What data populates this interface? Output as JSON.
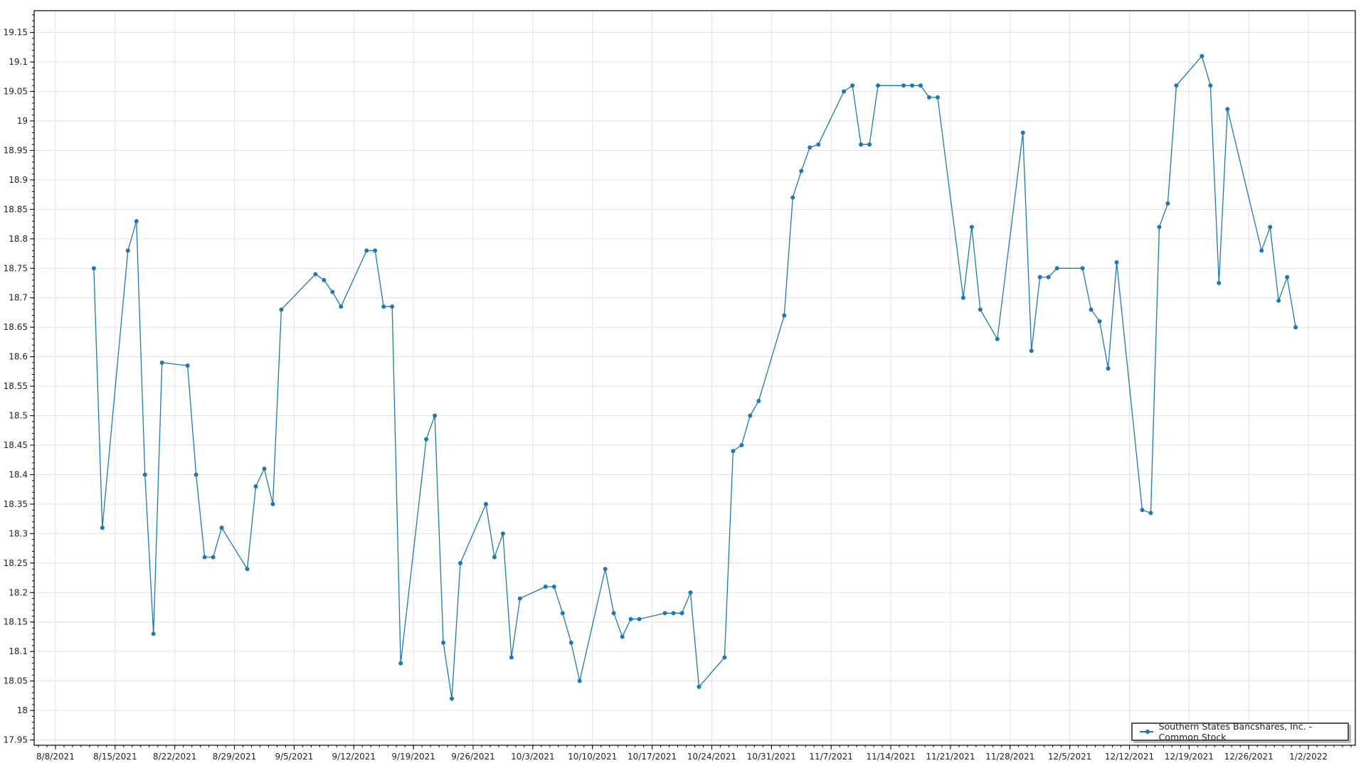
{
  "chart_data": {
    "type": "line",
    "title": "",
    "xlabel": "",
    "ylabel": "",
    "grid": true,
    "legend_position": "bottom-right",
    "ylim": [
      17.941,
      19.187
    ],
    "xlim": [
      "2021-08-05T12:00",
      "2022-01-07T12:00"
    ],
    "y_ticks": [
      "17.95",
      "18",
      "18.05",
      "18.1",
      "18.15",
      "18.2",
      "18.25",
      "18.3",
      "18.35",
      "18.4",
      "18.45",
      "18.5",
      "18.55",
      "18.6",
      "18.65",
      "18.7",
      "18.75",
      "18.8",
      "18.85",
      "18.9",
      "18.95",
      "19",
      "19.05",
      "19.1",
      "19.15"
    ],
    "x_ticks": [
      "8/8/2021",
      "8/15/2021",
      "8/22/2021",
      "8/29/2021",
      "9/5/2021",
      "9/12/2021",
      "9/19/2021",
      "9/26/2021",
      "10/3/2021",
      "10/10/2021",
      "10/17/2021",
      "10/24/2021",
      "10/31/2021",
      "11/7/2021",
      "11/14/2021",
      "11/21/2021",
      "11/28/2021",
      "12/5/2021",
      "12/12/2021",
      "12/19/2021",
      "12/26/2021",
      "1/2/2022"
    ],
    "series": [
      {
        "name": "Southern States Bancshares, Inc. - Common Stock",
        "color": "#1f77b4",
        "x": [
          "2021-08-12",
          "2021-08-13",
          "2021-08-16",
          "2021-08-17",
          "2021-08-18",
          "2021-08-19",
          "2021-08-20",
          "2021-08-23",
          "2021-08-24",
          "2021-08-25",
          "2021-08-26",
          "2021-08-27",
          "2021-08-30",
          "2021-08-31",
          "2021-09-01",
          "2021-09-02",
          "2021-09-03",
          "2021-09-07",
          "2021-09-08",
          "2021-09-09",
          "2021-09-10",
          "2021-09-13",
          "2021-09-14",
          "2021-09-15",
          "2021-09-16",
          "2021-09-17",
          "2021-09-20",
          "2021-09-21",
          "2021-09-22",
          "2021-09-23",
          "2021-09-24",
          "2021-09-27",
          "2021-09-28",
          "2021-09-29",
          "2021-09-30",
          "2021-10-01",
          "2021-10-04",
          "2021-10-05",
          "2021-10-06",
          "2021-10-07",
          "2021-10-08",
          "2021-10-11",
          "2021-10-12",
          "2021-10-13",
          "2021-10-14",
          "2021-10-15",
          "2021-10-18",
          "2021-10-19",
          "2021-10-20",
          "2021-10-21",
          "2021-10-22",
          "2021-10-25",
          "2021-10-26",
          "2021-10-27",
          "2021-10-28",
          "2021-10-29",
          "2021-11-01",
          "2021-11-02",
          "2021-11-03",
          "2021-11-04",
          "2021-11-05",
          "2021-11-08",
          "2021-11-09",
          "2021-11-10",
          "2021-11-11",
          "2021-11-12",
          "2021-11-15",
          "2021-11-16",
          "2021-11-17",
          "2021-11-18",
          "2021-11-19",
          "2021-11-22",
          "2021-11-23",
          "2021-11-24",
          "2021-11-26",
          "2021-11-29",
          "2021-11-30",
          "2021-12-01",
          "2021-12-02",
          "2021-12-03",
          "2021-12-06",
          "2021-12-07",
          "2021-12-08",
          "2021-12-09",
          "2021-12-10",
          "2021-12-13",
          "2021-12-14",
          "2021-12-15",
          "2021-12-16",
          "2021-12-17",
          "2021-12-20",
          "2021-12-21",
          "2021-12-22",
          "2021-12-23",
          "2021-12-27",
          "2021-12-28",
          "2021-12-29",
          "2021-12-30",
          "2021-12-31"
        ],
        "values": [
          18.75,
          18.31,
          18.78,
          18.83,
          18.4,
          18.13,
          18.59,
          18.585,
          18.4,
          18.26,
          18.26,
          18.31,
          18.24,
          18.38,
          18.41,
          18.35,
          18.68,
          18.74,
          18.73,
          18.71,
          18.685,
          18.78,
          18.78,
          18.685,
          18.685,
          18.08,
          18.46,
          18.5,
          18.115,
          18.02,
          18.25,
          18.35,
          18.26,
          18.3,
          18.09,
          18.19,
          18.21,
          18.21,
          18.165,
          18.115,
          18.05,
          18.24,
          18.165,
          18.125,
          18.155,
          18.155,
          18.165,
          18.165,
          18.165,
          18.2,
          18.04,
          18.09,
          18.44,
          18.45,
          18.5,
          18.525,
          18.67,
          18.87,
          18.915,
          18.955,
          18.96,
          19.05,
          19.06,
          18.96,
          18.96,
          19.06,
          19.06,
          19.06,
          19.06,
          19.04,
          19.04,
          18.7,
          18.82,
          18.68,
          18.63,
          18.98,
          18.61,
          18.735,
          18.735,
          18.75,
          18.75,
          18.68,
          18.66,
          18.58,
          18.76,
          18.34,
          18.335,
          18.82,
          18.86,
          19.06,
          19.11,
          19.06,
          18.725,
          19.02,
          18.78,
          18.82,
          18.695,
          18.735,
          18.65
        ]
      }
    ]
  }
}
